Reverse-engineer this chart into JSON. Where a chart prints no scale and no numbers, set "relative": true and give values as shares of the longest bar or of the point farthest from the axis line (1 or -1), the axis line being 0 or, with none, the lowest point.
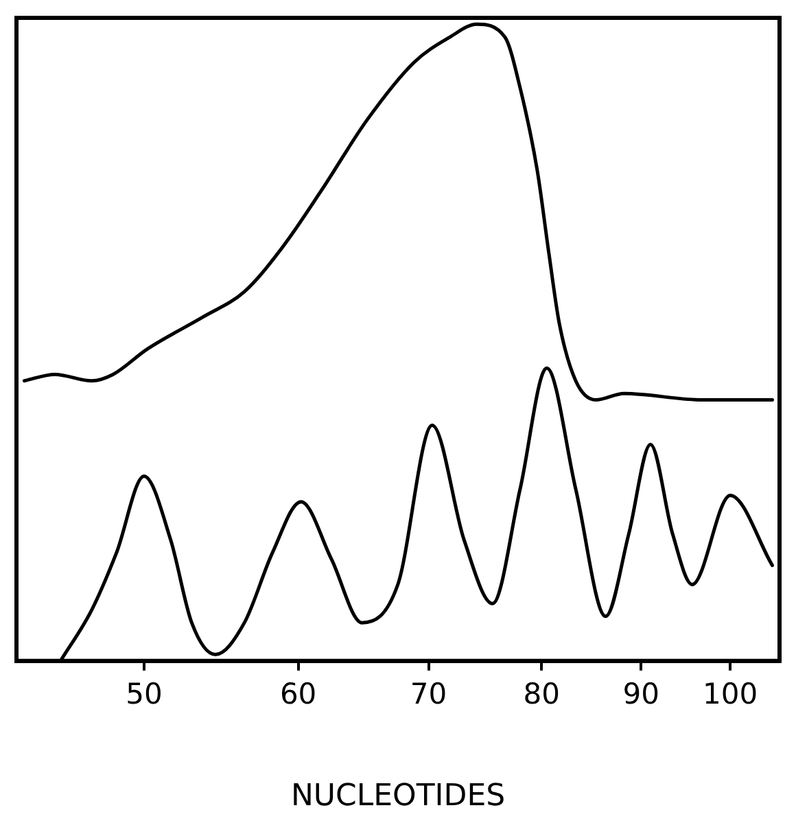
{
  "chart_data": {
    "type": "line",
    "xlabel": "NUCLEOTIDES",
    "relative": true,
    "log": "x",
    "xlim": [
      43,
      106
    ],
    "xticks": [
      50,
      60,
      70,
      80,
      90,
      100
    ],
    "tick_labels": "x",
    "grid": false,
    "legend": false,
    "marker": "none",
    "line_style": "solid",
    "series": [
      {
        "color": "#000000",
        "x": [
          43.4,
          45.0,
          47.0,
          48.2,
          50.2,
          53.6,
          56.3,
          58.9,
          61.7,
          65.1,
          68.8,
          71.8,
          74.1,
          76.6,
          78.0,
          79.6,
          80.7,
          81.7,
          83.3,
          85.3,
          88.2,
          96.7,
          105.1
        ],
        "values": [
          0.44,
          0.45,
          0.44,
          0.45,
          0.49,
          0.54,
          0.58,
          0.65,
          0.74,
          0.85,
          0.94,
          0.98,
          1,
          0.98,
          0.9,
          0.77,
          0.64,
          0.53,
          0.44,
          0.41,
          0.42,
          0.41,
          0.41
        ]
      },
      {
        "color": "#000000",
        "x": [
          45.3,
          47.0,
          48.4,
          50.0,
          51.6,
          52.9,
          54.4,
          56.3,
          58.2,
          60.2,
          62.4,
          64.7,
          67.5,
          70.3,
          73.0,
          75.5,
          78.0,
          80.5,
          83.3,
          86.3,
          88.7,
          91.0,
          93.4,
          95.6,
          100.0,
          105.1
        ],
        "values": [
          0,
          0.08,
          0.17,
          0.29,
          0.19,
          0.06,
          0.01,
          0.06,
          0.17,
          0.25,
          0.16,
          0.06,
          0.12,
          0.37,
          0.19,
          0.09,
          0.27,
          0.46,
          0.27,
          0.07,
          0.2,
          0.34,
          0.2,
          0.12,
          0.26,
          0.15
        ]
      }
    ]
  }
}
